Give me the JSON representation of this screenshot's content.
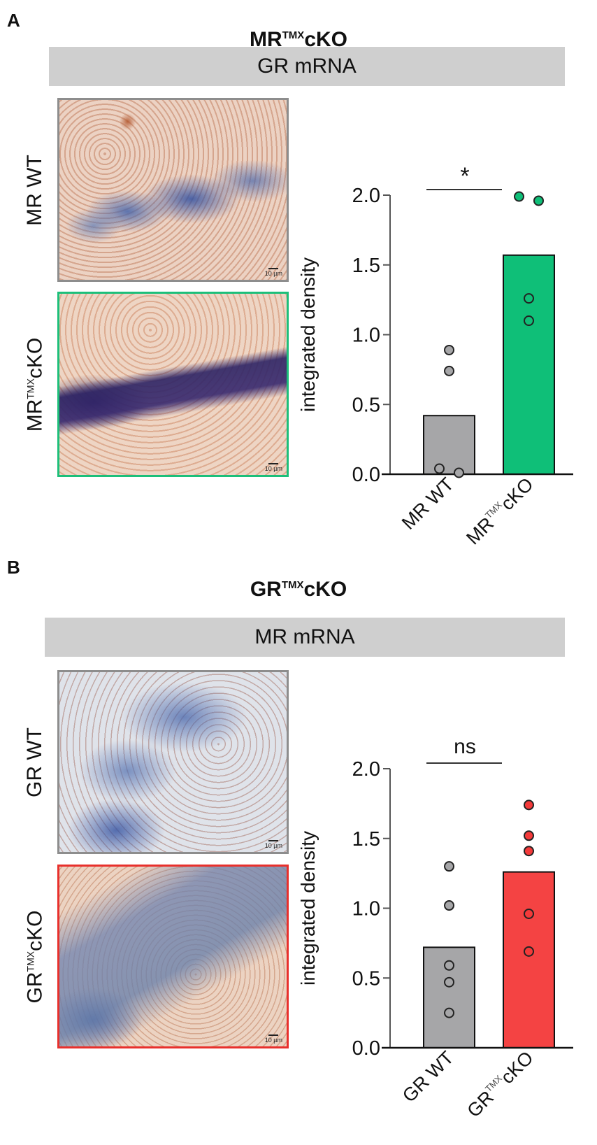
{
  "panels": [
    {
      "letter": "A",
      "title_main": "MR",
      "title_sup": "TMX",
      "title_tail": "cKO",
      "band_label": "GR mRNA",
      "images": [
        {
          "label": "MR WT",
          "label_sup": "",
          "label_tail": "",
          "border": "#8d8d8d",
          "scale": "10 µm",
          "style": "wt-a"
        },
        {
          "label": "MR",
          "label_sup": "TMX",
          "label_tail": "cKO",
          "border": "#1dbf7a",
          "scale": "10 µm",
          "style": "ko-a"
        }
      ]
    },
    {
      "letter": "B",
      "title_main": "GR",
      "title_sup": "TMX",
      "title_tail": "cKO",
      "band_label": "MR mRNA",
      "images": [
        {
          "label": "GR WT",
          "label_sup": "",
          "label_tail": "",
          "border": "#8d8d8d",
          "scale": "10 µm",
          "style": "wt-b"
        },
        {
          "label": "GR",
          "label_sup": "TMX",
          "label_tail": "cKO",
          "border": "#e8302c",
          "scale": "10 µm",
          "style": "ko-b"
        }
      ]
    }
  ],
  "chart_data": [
    {
      "type": "bar",
      "title": "MR TMX cKO — GR mRNA",
      "categories": [
        "MR WT",
        "MR TMX cKO"
      ],
      "xtick_labels": [
        {
          "main": "MR WT",
          "sup": "",
          "tail": ""
        },
        {
          "main": "MR",
          "sup": "TMX",
          "tail": "cKO"
        }
      ],
      "values": [
        0.42,
        1.57
      ],
      "points": [
        [
          0.89,
          0.74,
          0.04,
          0.01
        ],
        [
          1.99,
          1.96,
          1.26,
          1.1
        ]
      ],
      "colors": [
        "#a6a6a8",
        "#0fbf78"
      ],
      "point_colors": [
        "#a6a6a8",
        "#0fbf78"
      ],
      "ylabel": "integrated density",
      "xlabel": "",
      "ylim": [
        0,
        2.0
      ],
      "yticks": [
        0.0,
        0.5,
        1.0,
        1.5,
        2.0
      ],
      "ytick_labels": [
        "0.0",
        "0.5",
        "1.0",
        "1.5",
        "2.0"
      ],
      "significance": "*",
      "grid": false
    },
    {
      "type": "bar",
      "title": "GR TMX cKO — MR mRNA",
      "categories": [
        "GR WT",
        "GR TMX cKO"
      ],
      "xtick_labels": [
        {
          "main": "GR WT",
          "sup": "",
          "tail": ""
        },
        {
          "main": "GR",
          "sup": "TMX",
          "tail": "cKO"
        }
      ],
      "values": [
        0.72,
        1.26
      ],
      "points": [
        [
          1.3,
          1.02,
          0.59,
          0.47,
          0.25
        ],
        [
          1.74,
          1.52,
          1.41,
          0.96,
          0.69
        ]
      ],
      "colors": [
        "#a6a6a8",
        "#f44343"
      ],
      "point_colors": [
        "#a6a6a8",
        "#f43a3a"
      ],
      "ylabel": "integrated density",
      "xlabel": "",
      "ylim": [
        0,
        2.0
      ],
      "yticks": [
        0.0,
        0.5,
        1.0,
        1.5,
        2.0
      ],
      "ytick_labels": [
        "0.0",
        "0.5",
        "1.0",
        "1.5",
        "2.0"
      ],
      "significance": "ns",
      "grid": false
    }
  ]
}
